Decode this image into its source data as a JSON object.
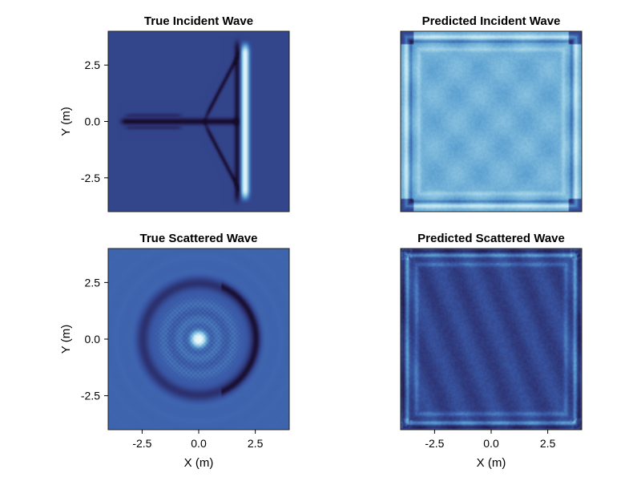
{
  "figure": {
    "colormap": [
      "#160b2a",
      "#2b2f6d",
      "#3a5aa8",
      "#5a9fd0",
      "#a9d8ea",
      "#eefafd"
    ]
  },
  "chart_data": [
    {
      "type": "heatmap",
      "title": "True Incident Wave",
      "xlabel": "",
      "ylabel": "Y (m)",
      "xlim": [
        -4,
        4
      ],
      "ylim": [
        -4,
        4
      ],
      "xticks": [],
      "yticks": [
        -2.5,
        0.0,
        2.5
      ],
      "xtick_labels": [],
      "ytick_labels": [
        "-2.5",
        "0.0",
        "2.5"
      ],
      "pattern": "incident-true",
      "grid": false
    },
    {
      "type": "heatmap",
      "title": "Predicted Incident Wave",
      "xlabel": "",
      "ylabel": "",
      "xlim": [
        -4,
        4
      ],
      "ylim": [
        -4,
        4
      ],
      "xticks": [],
      "yticks": [],
      "xtick_labels": [],
      "ytick_labels": [],
      "pattern": "incident-pred",
      "grid": false
    },
    {
      "type": "heatmap",
      "title": "True Scattered Wave",
      "xlabel": "X (m)",
      "ylabel": "Y (m)",
      "xlim": [
        -4,
        4
      ],
      "ylim": [
        -4,
        4
      ],
      "xticks": [
        -2.5,
        0.0,
        2.5
      ],
      "yticks": [
        -2.5,
        0.0,
        2.5
      ],
      "xtick_labels": [
        "-2.5",
        "0.0",
        "2.5"
      ],
      "ytick_labels": [
        "-2.5",
        "0.0",
        "2.5"
      ],
      "pattern": "scattered-true",
      "grid": false
    },
    {
      "type": "heatmap",
      "title": "Predicted Scattered Wave",
      "xlabel": "X (m)",
      "ylabel": "",
      "xlim": [
        -4,
        4
      ],
      "ylim": [
        -4,
        4
      ],
      "xticks": [
        -2.5,
        0.0,
        2.5
      ],
      "yticks": [],
      "xtick_labels": [
        "-2.5",
        "0.0",
        "2.5"
      ],
      "ytick_labels": [],
      "pattern": "scattered-pred",
      "grid": false
    }
  ]
}
